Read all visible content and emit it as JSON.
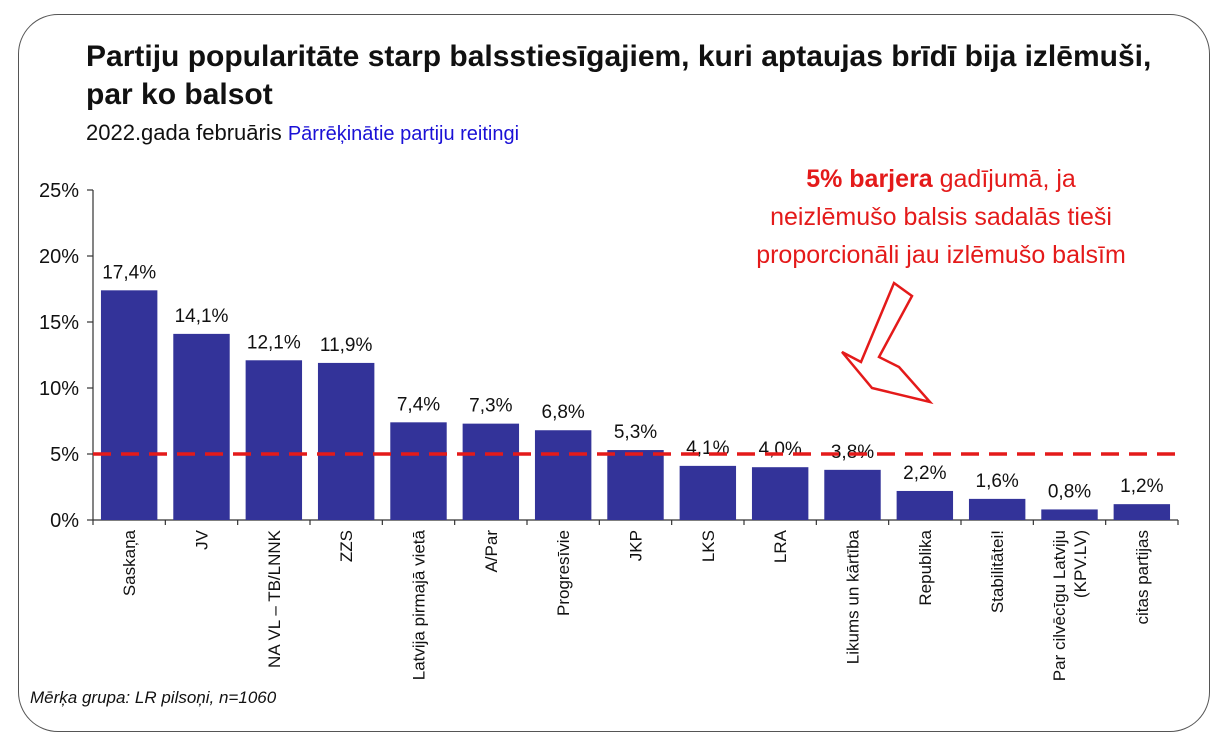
{
  "chart_data": {
    "type": "bar",
    "title": "Partiju popularitāte starp balsstiesīgajiem, kuri aptaujas brīdī bija izlēmuši, par ko balsot",
    "subtitle": "2022.gada februāris",
    "subtitle_highlight": "Pārrēķinātie partiju reitingi",
    "categories": [
      "Saskaņa",
      "JV",
      "NA VL – TB/LNNK",
      "ZZS",
      "Latvija pirmajā vietā",
      "A/Par",
      "Progresīvie",
      "JKP",
      "LKS",
      "LRA",
      "Likums un kārtība",
      "Republika",
      "Stabilitātei!",
      "Par cilvēcīgu Latviju (KPV.LV)",
      "citas partijas"
    ],
    "category_lines": [
      [
        "Saskaņa"
      ],
      [
        "JV"
      ],
      [
        "NA VL – TB/LNNK"
      ],
      [
        "ZZS"
      ],
      [
        "Latvija pirmajā vietā"
      ],
      [
        "A/Par"
      ],
      [
        "Progresīvie"
      ],
      [
        "JKP"
      ],
      [
        "LKS"
      ],
      [
        "LRA"
      ],
      [
        "Likums un kārtība"
      ],
      [
        "Republika"
      ],
      [
        "Stabilitātei!"
      ],
      [
        "Par cilvēcīgu Latviju",
        "(KPV.LV)"
      ],
      [
        "citas partijas"
      ]
    ],
    "values": [
      17.4,
      14.1,
      12.1,
      11.9,
      7.4,
      7.3,
      6.8,
      5.3,
      4.1,
      4.0,
      3.8,
      2.2,
      1.6,
      0.8,
      1.2
    ],
    "value_labels": [
      "17,4%",
      "14,1%",
      "12,1%",
      "11,9%",
      "7,4%",
      "7,3%",
      "6,8%",
      "5,3%",
      "4,1%",
      "4,0%",
      "3,8%",
      "2,2%",
      "1,6%",
      "0,8%",
      "1,2%"
    ],
    "ylim": [
      0,
      25
    ],
    "y_ticks": [
      0,
      5,
      10,
      15,
      20,
      25
    ],
    "y_tick_labels": [
      "0%",
      "5%",
      "10%",
      "15%",
      "20%",
      "25%"
    ],
    "threshold": 5,
    "grid": false,
    "legend": "none",
    "colors": {
      "bar": "#333399",
      "threshold": "#e41a1a",
      "subtitle_highlight": "#1a10d6",
      "annotation": "#e41a1a"
    }
  },
  "annotation": {
    "bold": "5% barjera",
    "line1_rest": " gadījumā, ja",
    "line2": "neizlēmušo balsis sadalās tieši",
    "line3": "proporcionāli jau izlēmušo balsīm"
  },
  "footnote": "Mērķa grupa: LR pilsoņi, n=1060"
}
